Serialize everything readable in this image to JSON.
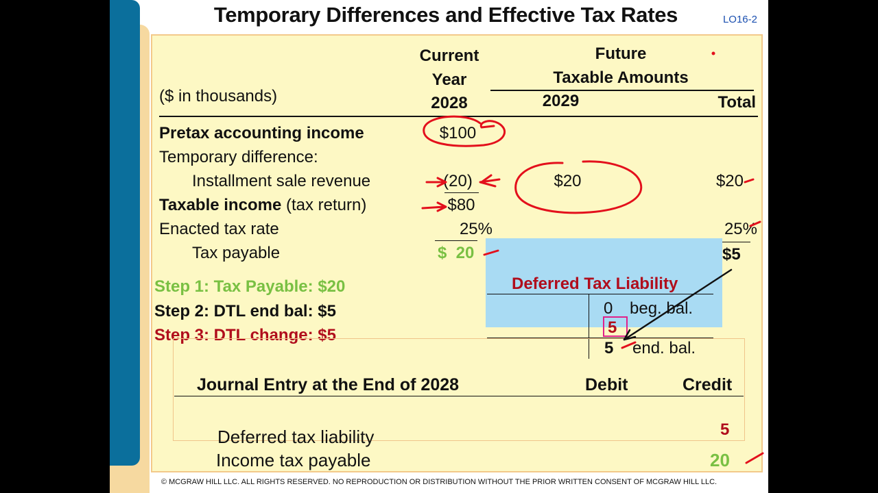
{
  "title": "Temporary Differences and Effective Tax Rates",
  "lo_tag": "LO16-2",
  "units_label": "($ in thousands)",
  "headers": {
    "current_line1": "Current",
    "current_line2": "Year",
    "current_line3": "2028",
    "future_line1": "Future",
    "future_line2": "Taxable Amounts",
    "year_2029": "2029",
    "total": "Total"
  },
  "rows": {
    "pretax_label": "Pretax accounting income",
    "pretax_current": "$100",
    "temp_diff_label": "Temporary difference:",
    "installment_label": "Installment sale revenue",
    "installment_current": "(20)",
    "installment_2029": "$20",
    "installment_total": "$20",
    "taxable_label_bold": "Taxable income",
    "taxable_label_rest": "(tax return)",
    "taxable_current": "$80",
    "rate_label": "Enacted tax rate",
    "rate_current": "25%",
    "rate_total": "25%",
    "payable_label": "Tax payable",
    "payable_current": "$  20",
    "payable_total": "$5"
  },
  "steps": {
    "step1": "Step 1: Tax Payable: $20",
    "step2": "Step 2: DTL end bal: $5",
    "step3": "Step 3: DTL change: $5"
  },
  "dtl_account": {
    "title": "Deferred Tax Liability",
    "beg_value": "0",
    "beg_label": "beg. bal.",
    "change_value": "5",
    "end_value": "5",
    "end_label": "end. bal."
  },
  "journal": {
    "title": "Journal Entry at the End of 2028",
    "debit_header": "Debit",
    "credit_header": "Credit",
    "line1_account": "Deferred tax liability",
    "line1_credit": "5",
    "line2_account": "Income tax payable",
    "line2_credit": "20"
  },
  "footer": "© MCGRAW HILL LLC. ALL RIGHTS RESERVED. NO REPRODUCTION OR DISTRIBUTION WITHOUT THE PRIOR WRITTEN CONSENT OF MCGRAW HILL LLC.",
  "colors": {
    "panel_bg": "#fdf8c4",
    "green": "#79c043",
    "dark_red": "#b00d1c",
    "ink_red": "#e3101c",
    "dtl_bg": "#a9dbf3",
    "side_blue": "#0b6f9c",
    "side_gold": "#f6d9a0"
  }
}
